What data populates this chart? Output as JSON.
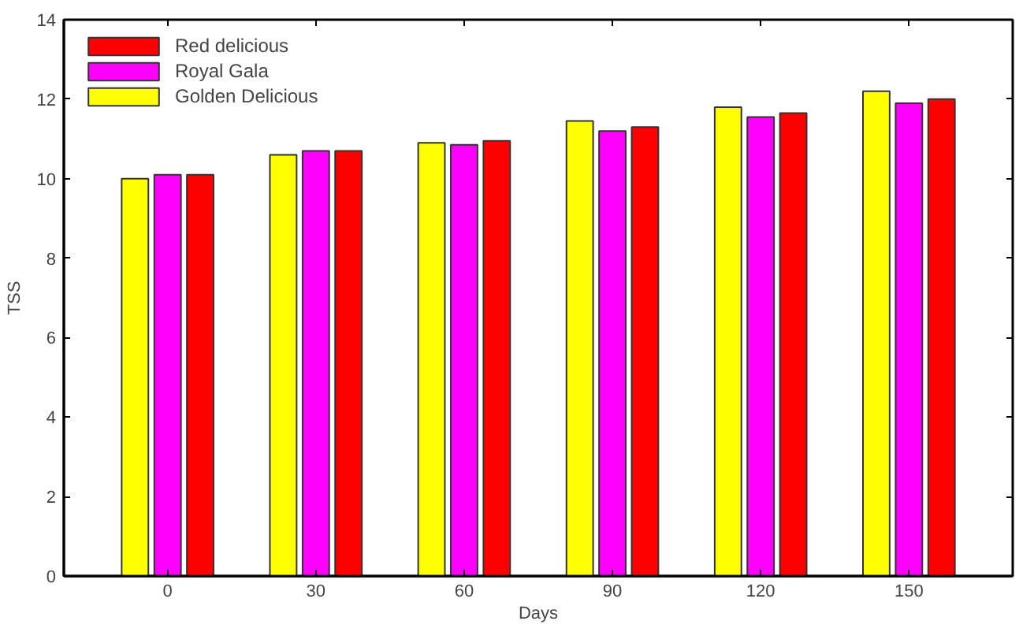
{
  "chart_data": {
    "type": "bar",
    "xlabel": "Days",
    "ylabel": "TSS",
    "categories": [
      "0",
      "30",
      "60",
      "90",
      "120",
      "150"
    ],
    "series": [
      {
        "name": "Golden Delicious",
        "color": "#ffff00",
        "values": [
          10.0,
          10.6,
          10.9,
          11.45,
          11.8,
          12.2
        ]
      },
      {
        "name": "Royal Gala",
        "color": "#ff00ff",
        "values": [
          10.1,
          10.7,
          10.85,
          11.2,
          11.55,
          11.9
        ]
      },
      {
        "name": "Red delicious",
        "color": "#ff0000",
        "values": [
          10.1,
          10.7,
          10.95,
          11.3,
          11.65,
          12.0
        ]
      }
    ],
    "ylim": [
      0,
      14
    ],
    "yticks": [
      0,
      2,
      4,
      6,
      8,
      10,
      12,
      14
    ],
    "grid": false,
    "legend": "top left"
  }
}
